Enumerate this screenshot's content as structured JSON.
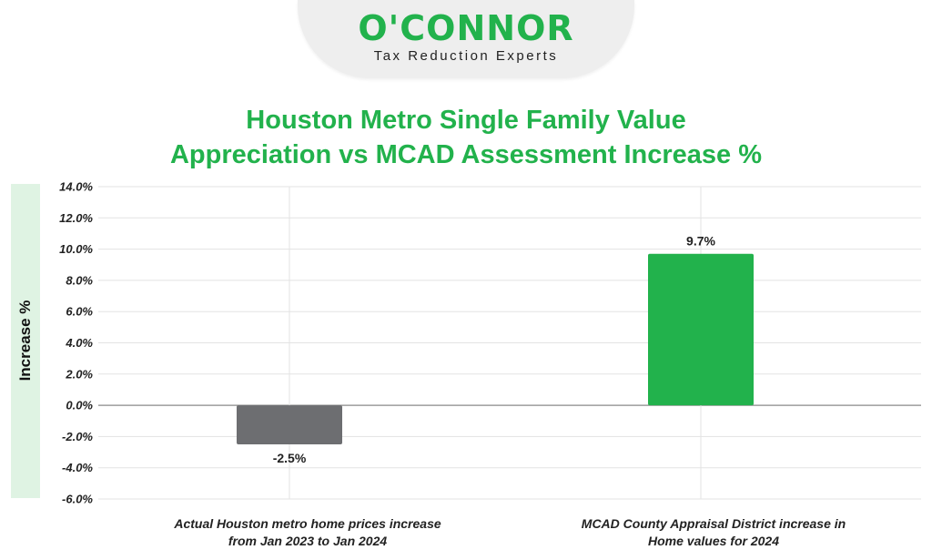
{
  "brand": {
    "name": "O'CONNOR",
    "tagline": "Tax Reduction Experts",
    "color": "#22b24c"
  },
  "chart_data": {
    "type": "bar",
    "title_lines": [
      "Houston Metro Single Family Value",
      "Appreciation vs MCAD Assessment Increase %"
    ],
    "ylabel": "Increase %",
    "xlabel": "",
    "categories": [
      [
        "Actual Houston metro home prices increase",
        "from Jan 2023 to Jan 2024"
      ],
      [
        "MCAD County Appraisal District increase in",
        "Home values for 2024"
      ]
    ],
    "values": [
      -2.5,
      9.7
    ],
    "value_labels": [
      "-2.5%",
      "9.7%"
    ],
    "bar_colors": [
      "#6d6e71",
      "#22b24c"
    ],
    "ylim": [
      -6.0,
      14.0
    ],
    "yticks": [
      14.0,
      12.0,
      10.0,
      8.0,
      6.0,
      4.0,
      2.0,
      0.0,
      -2.0,
      -4.0,
      -6.0
    ],
    "ytick_labels": [
      "14.0%",
      "12.0%",
      "10.0%",
      "8.0%",
      "6.0%",
      "4.0%",
      "2.0%",
      "0.0%",
      "-2.0%",
      "-4.0%",
      "-6.0%"
    ],
    "grid": true,
    "legend": "none"
  }
}
